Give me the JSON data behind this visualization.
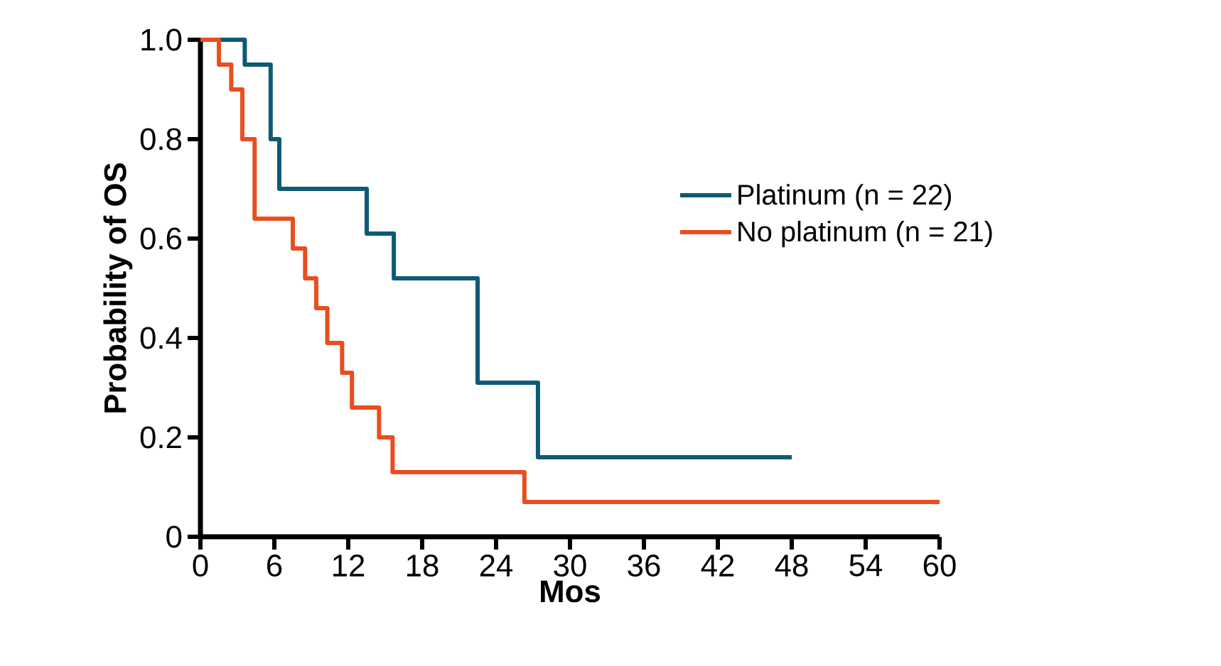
{
  "chart_data": {
    "type": "step",
    "xlabel": "Mos",
    "ylabel": "Probability of OS",
    "xlim": [
      0,
      60
    ],
    "xticks": [
      0,
      6,
      12,
      18,
      24,
      30,
      36,
      42,
      48,
      54,
      60
    ],
    "ylim": [
      0,
      1
    ],
    "yticks": [
      0,
      0.2,
      0.4,
      0.6,
      0.8,
      {
        "value": 1,
        "label": "1.0"
      }
    ],
    "legend": "right",
    "grid": false,
    "series": [
      {
        "name": "Platinum (n = 22)",
        "color": "#0e5a75",
        "x": [
          0,
          3.6,
          5.7,
          6.4,
          13.5,
          15.7,
          22.5,
          27.4,
          48
        ],
        "values": [
          1,
          0.95,
          0.8,
          0.7,
          0.61,
          0.52,
          0.31,
          0.16,
          0.16
        ]
      },
      {
        "name": "No platinum (n = 21)",
        "color": "#e84e1f",
        "x": [
          0,
          1.5,
          2.5,
          3.4,
          4.4,
          7.5,
          8.5,
          9.4,
          10.3,
          11.5,
          12.3,
          14.5,
          15.6,
          26.3,
          60
        ],
        "values": [
          1,
          0.95,
          0.9,
          0.8,
          0.64,
          0.58,
          0.52,
          0.46,
          0.39,
          0.33,
          0.26,
          0.2,
          0.13,
          0.07,
          0.07
        ]
      }
    ]
  }
}
